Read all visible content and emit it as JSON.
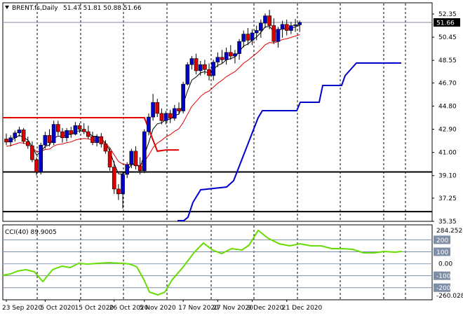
{
  "header": {
    "symbol": "BRENT.fs,Daily",
    "ohlc": "51.47 51.81 50.88 51.66"
  },
  "cci": {
    "label": "CCI(40) 89.9005",
    "axis_labels": [
      "284.2522",
      "200",
      "100",
      "0.00",
      "-100",
      "-200",
      "-260.028"
    ]
  },
  "price_tag": "51.66",
  "chart_data": [
    {
      "type": "candlestick",
      "title": "BRENT.fs,Daily",
      "x_tick_labels": [
        "23 Sep 2020",
        "5 Oct 2020",
        "15 Oct 2020",
        "26 Oct 2020",
        "5 Nov 2020",
        "17 Nov 2020",
        "27 Nov 2020",
        "9 Dec 2020",
        "21 Dec 2020"
      ],
      "x_tick_index": [
        0,
        9,
        17,
        25,
        32,
        41,
        49,
        57,
        65
      ],
      "y_tick_labels": [
        "52.35",
        "50.45",
        "48.55",
        "46.70",
        "44.80",
        "42.90",
        "41.00",
        "39.10",
        "37.25",
        "35.35"
      ],
      "ylim": [
        35.35,
        52.35
      ],
      "last_price": 51.66,
      "grid": "dashed-vertical",
      "candles": [
        [
          42.1,
          42.55,
          41.6,
          41.85
        ],
        [
          41.85,
          42.4,
          41.5,
          42.2
        ],
        [
          42.2,
          42.8,
          41.9,
          42.6
        ],
        [
          42.6,
          43.1,
          42.3,
          42.85
        ],
        [
          42.85,
          43.0,
          41.7,
          41.9
        ],
        [
          41.9,
          42.3,
          41.3,
          41.55
        ],
        [
          41.55,
          41.9,
          40.2,
          40.4
        ],
        [
          40.4,
          40.6,
          39.1,
          39.4
        ],
        [
          39.4,
          41.8,
          39.2,
          41.6
        ],
        [
          41.6,
          42.7,
          41.3,
          42.4
        ],
        [
          42.4,
          42.9,
          41.5,
          41.8
        ],
        [
          41.8,
          43.6,
          41.6,
          43.3
        ],
        [
          43.3,
          43.6,
          42.4,
          42.7
        ],
        [
          42.7,
          43.0,
          41.8,
          42.2
        ],
        [
          42.2,
          43.0,
          41.9,
          42.8
        ],
        [
          42.8,
          43.1,
          42.2,
          42.5
        ],
        [
          42.5,
          43.5,
          42.4,
          43.2
        ],
        [
          43.2,
          43.4,
          42.6,
          42.9
        ],
        [
          42.9,
          43.4,
          42.5,
          42.7
        ],
        [
          42.7,
          43.2,
          42.1,
          42.3
        ],
        [
          42.3,
          42.7,
          41.6,
          41.8
        ],
        [
          41.8,
          42.5,
          41.5,
          42.3
        ],
        [
          42.3,
          42.6,
          41.4,
          41.7
        ],
        [
          41.7,
          42.0,
          40.9,
          41.1
        ],
        [
          41.1,
          41.4,
          39.5,
          39.8
        ],
        [
          39.8,
          40.3,
          37.6,
          38.0
        ],
        [
          38.0,
          38.4,
          37.1,
          37.6
        ],
        [
          37.6,
          39.4,
          36.4,
          39.2
        ],
        [
          39.2,
          40.2,
          38.9,
          40.0
        ],
        [
          40.0,
          41.3,
          39.7,
          41.1
        ],
        [
          41.1,
          41.5,
          39.6,
          39.9
        ],
        [
          39.9,
          40.6,
          39.2,
          39.5
        ],
        [
          39.5,
          42.9,
          39.3,
          42.7
        ],
        [
          42.7,
          44.2,
          42.4,
          43.9
        ],
        [
          43.9,
          45.8,
          43.6,
          45.1
        ],
        [
          45.1,
          45.4,
          43.9,
          44.2
        ],
        [
          44.2,
          44.6,
          43.3,
          43.6
        ],
        [
          43.6,
          44.4,
          43.3,
          44.2
        ],
        [
          44.2,
          44.5,
          43.4,
          43.8
        ],
        [
          43.8,
          44.9,
          43.6,
          44.6
        ],
        [
          44.6,
          45.1,
          44.1,
          44.4
        ],
        [
          44.4,
          46.8,
          44.2,
          46.6
        ],
        [
          46.6,
          48.4,
          46.5,
          48.2
        ],
        [
          48.2,
          48.9,
          47.8,
          48.7
        ],
        [
          48.7,
          49.1,
          47.4,
          47.7
        ],
        [
          47.7,
          48.5,
          47.3,
          48.2
        ],
        [
          48.2,
          48.6,
          47.4,
          47.8
        ],
        [
          47.8,
          48.3,
          46.9,
          47.3
        ],
        [
          47.3,
          48.6,
          46.9,
          48.4
        ],
        [
          48.4,
          49.2,
          48.0,
          48.8
        ],
        [
          48.8,
          49.4,
          48.3,
          48.6
        ],
        [
          48.6,
          49.6,
          48.2,
          49.2
        ],
        [
          49.2,
          49.8,
          48.6,
          48.9
        ],
        [
          48.9,
          49.4,
          48.3,
          49.1
        ],
        [
          49.1,
          50.3,
          48.6,
          50.1
        ],
        [
          50.1,
          51.0,
          49.6,
          50.7
        ],
        [
          50.7,
          51.2,
          49.8,
          50.2
        ],
        [
          50.2,
          51.1,
          49.8,
          50.8
        ],
        [
          50.8,
          51.4,
          50.2,
          51.0
        ],
        [
          51.0,
          51.9,
          50.4,
          51.6
        ],
        [
          51.6,
          52.4,
          51.2,
          52.2
        ],
        [
          52.2,
          52.7,
          51.1,
          51.4
        ],
        [
          51.4,
          52.0,
          49.9,
          50.1
        ],
        [
          50.1,
          51.3,
          49.6,
          51.1
        ],
        [
          51.1,
          51.8,
          50.4,
          51.5
        ],
        [
          51.5,
          51.9,
          50.6,
          51.0
        ],
        [
          51.0,
          51.7,
          50.7,
          51.4
        ],
        [
          51.4,
          51.95,
          50.88,
          51.47
        ],
        [
          51.47,
          51.81,
          50.88,
          51.66
        ]
      ],
      "series": [
        {
          "name": "fast MA",
          "color": "#000000"
        },
        {
          "name": "slow MA",
          "color": "#e00000"
        },
        {
          "name": "upper stop",
          "color": "#e00000"
        },
        {
          "name": "lower stop",
          "color": "#0000cc"
        }
      ]
    },
    {
      "type": "line",
      "title": "CCI(40) 89.9005",
      "ylim": [
        -260.028,
        284.2522
      ],
      "y_levels": [
        200,
        100,
        0,
        -100,
        -200
      ],
      "last_value": 89.9005,
      "color": "#66dd00"
    }
  ]
}
